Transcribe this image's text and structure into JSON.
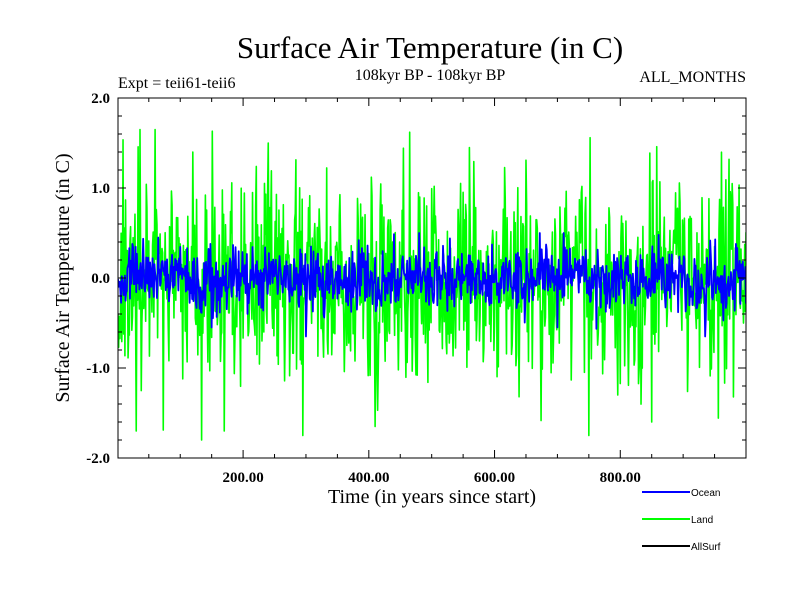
{
  "chart_data": {
    "type": "line",
    "title": "Surface Air Temperature (in C)",
    "subtitle": "108kyr BP - 108kyr BP",
    "experiment_label": "Expt = teii61-teii6",
    "period_label": "ALL_MONTHS",
    "xlabel": "Time (in years since start)",
    "ylabel": "Surface Air Temperature (in C)",
    "xlim": [
      1,
      1000
    ],
    "ylim": [
      -2.0,
      2.0
    ],
    "x_ticks": [
      200,
      400,
      600,
      800
    ],
    "x_tick_labels": [
      "200.00",
      "400.00",
      "600.00",
      "800.00"
    ],
    "y_ticks": [
      -2.0,
      -1.0,
      0.0,
      1.0,
      2.0
    ],
    "y_tick_labels": [
      "-2.0",
      "-1.0",
      "0.0",
      "1.0",
      "2.0"
    ],
    "grid": false,
    "legend_position": "bottom-right",
    "series": [
      {
        "name": "Land",
        "color": "#00ff00",
        "amplitude": 0.55,
        "range": [
          -1.8,
          1.65
        ],
        "peaks": [
          [
            60,
            1.65
          ],
          [
            120,
            1.4
          ],
          [
            240,
            1.5
          ],
          [
            465,
            1.62
          ],
          [
            560,
            1.45
          ],
          [
            170,
            -1.7
          ],
          [
            295,
            -1.75
          ],
          [
            410,
            -1.65
          ],
          [
            750,
            -1.75
          ],
          [
            850,
            -1.6
          ],
          [
            30,
            -1.7
          ]
        ]
      },
      {
        "name": "Ocean",
        "color": "#0000ff",
        "amplitude": 0.17,
        "range": [
          -0.65,
          0.5
        ],
        "peaks": [
          [
            65,
            0.45
          ],
          [
            480,
            0.5
          ],
          [
            300,
            -0.65
          ],
          [
            150,
            -0.55
          ],
          [
            700,
            -0.55
          ]
        ]
      },
      {
        "name": "AllSurf",
        "color": "#000000",
        "amplitude": 0.0,
        "range": null,
        "peaks": []
      }
    ]
  }
}
